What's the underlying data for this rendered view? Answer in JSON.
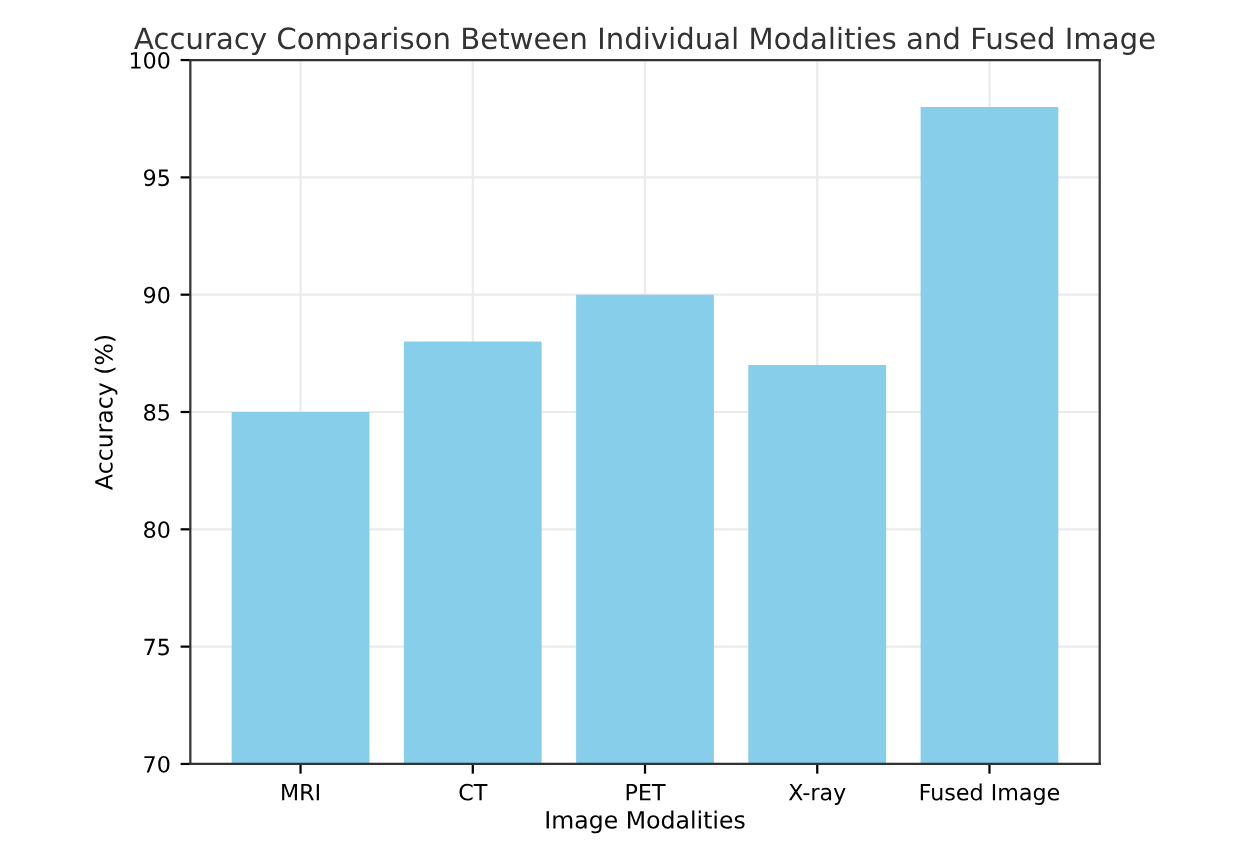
{
  "chart_data": {
    "type": "bar",
    "title": "Accuracy Comparison Between Individual Modalities and Fused Image",
    "xlabel": "Image Modalities",
    "ylabel": "Accuracy (%)",
    "categories": [
      "MRI",
      "CT",
      "PET",
      "X-ray",
      "Fused Image"
    ],
    "values": [
      85,
      88,
      90,
      87,
      98
    ],
    "color": "#87ceeb",
    "ylim": [
      70,
      100
    ],
    "yticks": [
      70,
      75,
      80,
      85,
      90,
      95,
      100
    ],
    "grid": true
  }
}
